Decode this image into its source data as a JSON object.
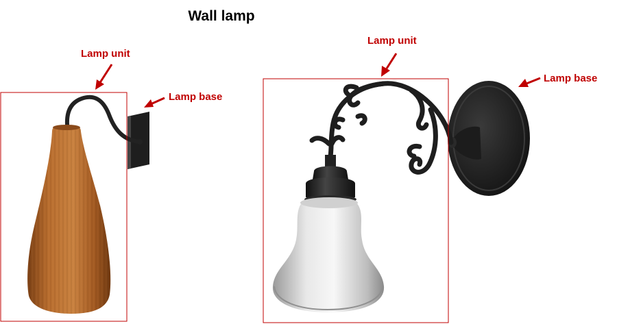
{
  "title": "Wall lamp",
  "left_lamp": {
    "unit_label": "Lamp unit",
    "base_label": "Lamp base"
  },
  "right_lamp": {
    "unit_label": "Lamp unit",
    "base_label": "Lamp base"
  },
  "colors": {
    "label": "#c00000",
    "box_outline": "#c00000",
    "wood_shade": "#b0662a",
    "iron": "#222222",
    "glass_shade": "#d9d9d9"
  }
}
